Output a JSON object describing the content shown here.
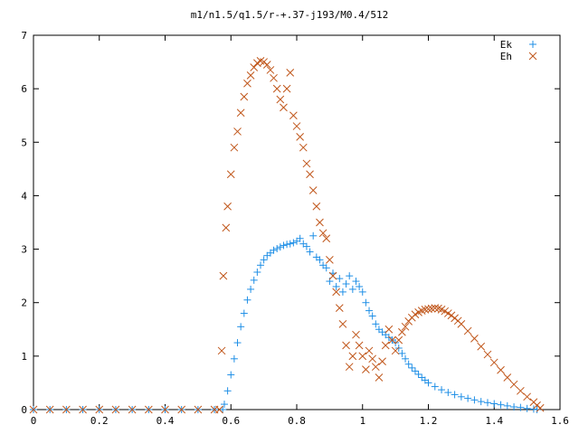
{
  "chart_data": {
    "type": "scatter",
    "title": "m1/n1.5/q1.5/r-+.37-j193/M0.4/512",
    "xlabel": "",
    "ylabel": "",
    "xlim": [
      0,
      1.6
    ],
    "ylim": [
      0,
      7
    ],
    "x_ticks": [
      "0",
      "0.2",
      "0.4",
      "0.6",
      "0.8",
      "1",
      "1.2",
      "1.4",
      "1.6"
    ],
    "y_ticks": [
      "0",
      "1",
      "2",
      "3",
      "4",
      "5",
      "6",
      "7"
    ],
    "grid": false,
    "legend_position": "top-right",
    "series": [
      {
        "name": "Ek",
        "marker": "+",
        "color": "#1f8fe6",
        "points": [
          [
            0.0,
            0
          ],
          [
            0.05,
            0
          ],
          [
            0.1,
            0
          ],
          [
            0.15,
            0
          ],
          [
            0.2,
            0
          ],
          [
            0.25,
            0
          ],
          [
            0.3,
            0
          ],
          [
            0.35,
            0
          ],
          [
            0.4,
            0
          ],
          [
            0.45,
            0
          ],
          [
            0.5,
            0
          ],
          [
            0.55,
            0
          ],
          [
            0.575,
            0
          ],
          [
            0.58,
            0.1
          ],
          [
            0.59,
            0.35
          ],
          [
            0.6,
            0.65
          ],
          [
            0.61,
            0.95
          ],
          [
            0.62,
            1.25
          ],
          [
            0.63,
            1.55
          ],
          [
            0.64,
            1.8
          ],
          [
            0.65,
            2.05
          ],
          [
            0.66,
            2.25
          ],
          [
            0.67,
            2.42
          ],
          [
            0.68,
            2.57
          ],
          [
            0.69,
            2.7
          ],
          [
            0.7,
            2.8
          ],
          [
            0.71,
            2.88
          ],
          [
            0.72,
            2.93
          ],
          [
            0.73,
            2.98
          ],
          [
            0.74,
            3.01
          ],
          [
            0.75,
            3.04
          ],
          [
            0.76,
            3.07
          ],
          [
            0.77,
            3.09
          ],
          [
            0.78,
            3.1
          ],
          [
            0.79,
            3.12
          ],
          [
            0.8,
            3.15
          ],
          [
            0.81,
            3.2
          ],
          [
            0.82,
            3.1
          ],
          [
            0.83,
            3.05
          ],
          [
            0.84,
            2.95
          ],
          [
            0.85,
            3.25
          ],
          [
            0.86,
            2.85
          ],
          [
            0.87,
            2.8
          ],
          [
            0.88,
            2.7
          ],
          [
            0.89,
            2.65
          ],
          [
            0.9,
            2.4
          ],
          [
            0.91,
            2.55
          ],
          [
            0.92,
            2.3
          ],
          [
            0.93,
            2.45
          ],
          [
            0.94,
            2.2
          ],
          [
            0.95,
            2.35
          ],
          [
            0.96,
            2.5
          ],
          [
            0.97,
            2.25
          ],
          [
            0.98,
            2.4
          ],
          [
            0.99,
            2.3
          ],
          [
            1.0,
            2.2
          ],
          [
            1.01,
            2.0
          ],
          [
            1.02,
            1.85
          ],
          [
            1.03,
            1.75
          ],
          [
            1.04,
            1.6
          ],
          [
            1.05,
            1.5
          ],
          [
            1.06,
            1.45
          ],
          [
            1.07,
            1.4
          ],
          [
            1.08,
            1.35
          ],
          [
            1.09,
            1.3
          ],
          [
            1.1,
            1.25
          ],
          [
            1.11,
            1.15
          ],
          [
            1.12,
            1.05
          ],
          [
            1.13,
            0.95
          ],
          [
            1.14,
            0.85
          ],
          [
            1.15,
            0.78
          ],
          [
            1.16,
            0.72
          ],
          [
            1.17,
            0.66
          ],
          [
            1.18,
            0.6
          ],
          [
            1.19,
            0.55
          ],
          [
            1.2,
            0.5
          ],
          [
            1.22,
            0.43
          ],
          [
            1.24,
            0.37
          ],
          [
            1.26,
            0.32
          ],
          [
            1.28,
            0.28
          ],
          [
            1.3,
            0.24
          ],
          [
            1.32,
            0.21
          ],
          [
            1.34,
            0.18
          ],
          [
            1.36,
            0.15
          ],
          [
            1.38,
            0.13
          ],
          [
            1.4,
            0.11
          ],
          [
            1.42,
            0.09
          ],
          [
            1.44,
            0.07
          ],
          [
            1.46,
            0.05
          ],
          [
            1.48,
            0.04
          ],
          [
            1.5,
            0.02
          ],
          [
            1.52,
            0.01
          ],
          [
            1.53,
            0.0
          ]
        ]
      },
      {
        "name": "Eh",
        "marker": "x",
        "color": "#c0561a",
        "points": [
          [
            0.0,
            0
          ],
          [
            0.05,
            0
          ],
          [
            0.1,
            0
          ],
          [
            0.15,
            0
          ],
          [
            0.2,
            0
          ],
          [
            0.25,
            0
          ],
          [
            0.3,
            0
          ],
          [
            0.35,
            0
          ],
          [
            0.4,
            0
          ],
          [
            0.45,
            0
          ],
          [
            0.5,
            0
          ],
          [
            0.55,
            0
          ],
          [
            0.565,
            0
          ],
          [
            0.572,
            1.1
          ],
          [
            0.577,
            2.5
          ],
          [
            0.585,
            3.4
          ],
          [
            0.59,
            3.8
          ],
          [
            0.6,
            4.4
          ],
          [
            0.61,
            4.9
          ],
          [
            0.62,
            5.2
          ],
          [
            0.63,
            5.55
          ],
          [
            0.64,
            5.85
          ],
          [
            0.65,
            6.1
          ],
          [
            0.66,
            6.25
          ],
          [
            0.67,
            6.4
          ],
          [
            0.68,
            6.48
          ],
          [
            0.69,
            6.52
          ],
          [
            0.7,
            6.5
          ],
          [
            0.71,
            6.45
          ],
          [
            0.72,
            6.35
          ],
          [
            0.73,
            6.2
          ],
          [
            0.74,
            6.0
          ],
          [
            0.75,
            5.8
          ],
          [
            0.76,
            5.65
          ],
          [
            0.77,
            6.0
          ],
          [
            0.78,
            6.3
          ],
          [
            0.79,
            5.5
          ],
          [
            0.8,
            5.3
          ],
          [
            0.81,
            5.1
          ],
          [
            0.82,
            4.9
          ],
          [
            0.83,
            4.6
          ],
          [
            0.84,
            4.4
          ],
          [
            0.85,
            4.1
          ],
          [
            0.86,
            3.8
          ],
          [
            0.87,
            3.5
          ],
          [
            0.88,
            3.3
          ],
          [
            0.89,
            3.2
          ],
          [
            0.9,
            2.8
          ],
          [
            0.91,
            2.5
          ],
          [
            0.92,
            2.2
          ],
          [
            0.93,
            1.9
          ],
          [
            0.94,
            1.6
          ],
          [
            0.95,
            1.2
          ],
          [
            0.96,
            0.8
          ],
          [
            0.97,
            1.0
          ],
          [
            0.98,
            1.4
          ],
          [
            0.99,
            1.2
          ],
          [
            1.0,
            1.0
          ],
          [
            1.01,
            0.75
          ],
          [
            1.02,
            1.1
          ],
          [
            1.03,
            0.95
          ],
          [
            1.04,
            0.8
          ],
          [
            1.05,
            0.6
          ],
          [
            1.06,
            0.9
          ],
          [
            1.07,
            1.2
          ],
          [
            1.08,
            1.5
          ],
          [
            1.09,
            1.3
          ],
          [
            1.1,
            1.1
          ],
          [
            1.11,
            1.3
          ],
          [
            1.12,
            1.45
          ],
          [
            1.13,
            1.55
          ],
          [
            1.14,
            1.65
          ],
          [
            1.15,
            1.72
          ],
          [
            1.16,
            1.78
          ],
          [
            1.17,
            1.82
          ],
          [
            1.18,
            1.85
          ],
          [
            1.19,
            1.87
          ],
          [
            1.2,
            1.88
          ],
          [
            1.21,
            1.89
          ],
          [
            1.22,
            1.9
          ],
          [
            1.23,
            1.89
          ],
          [
            1.24,
            1.87
          ],
          [
            1.25,
            1.84
          ],
          [
            1.26,
            1.8
          ],
          [
            1.27,
            1.76
          ],
          [
            1.28,
            1.71
          ],
          [
            1.29,
            1.66
          ],
          [
            1.3,
            1.6
          ],
          [
            1.32,
            1.47
          ],
          [
            1.34,
            1.33
          ],
          [
            1.36,
            1.18
          ],
          [
            1.38,
            1.03
          ],
          [
            1.4,
            0.88
          ],
          [
            1.42,
            0.74
          ],
          [
            1.44,
            0.6
          ],
          [
            1.46,
            0.47
          ],
          [
            1.48,
            0.35
          ],
          [
            1.5,
            0.24
          ],
          [
            1.52,
            0.14
          ],
          [
            1.53,
            0.08
          ],
          [
            1.54,
            0.03
          ]
        ]
      }
    ]
  }
}
